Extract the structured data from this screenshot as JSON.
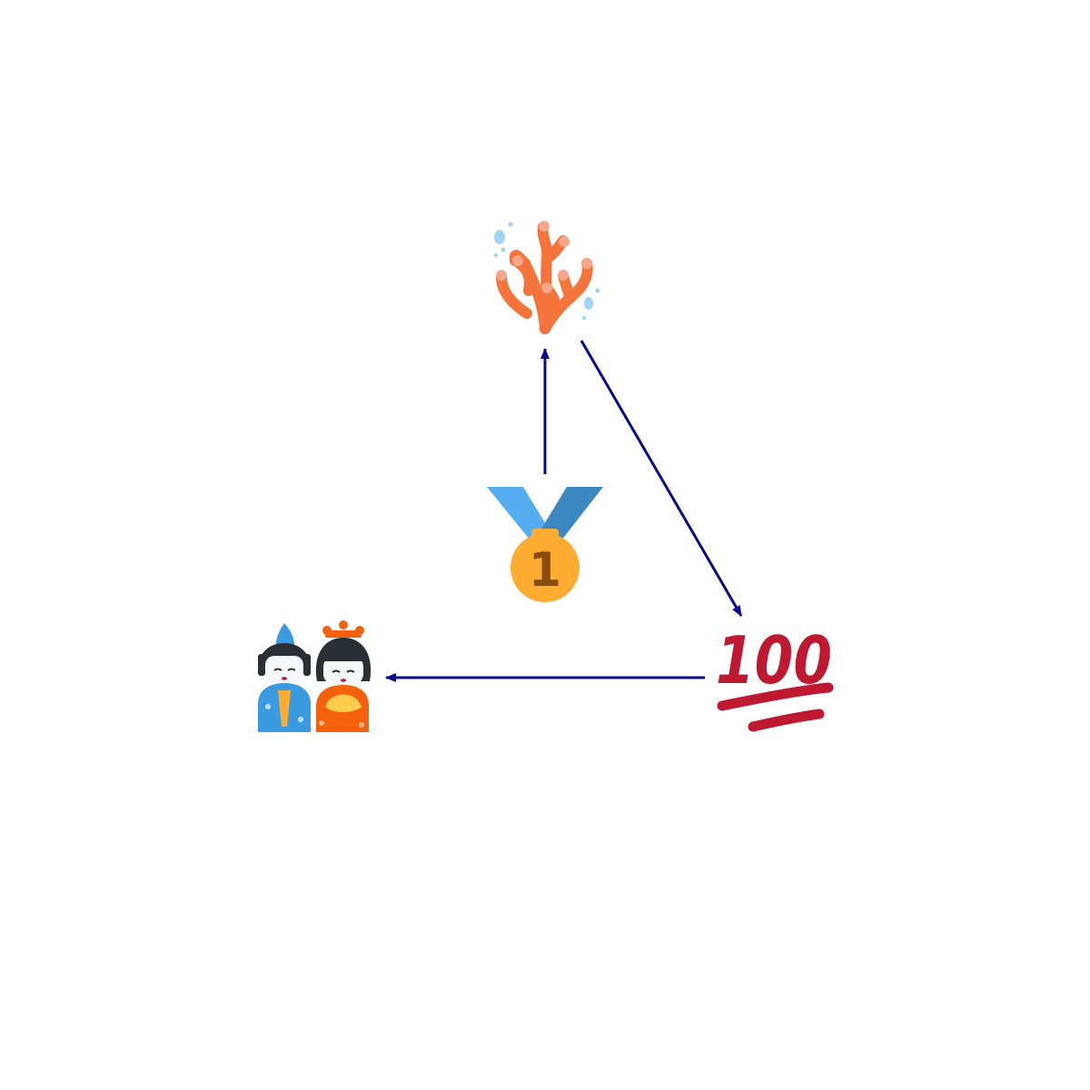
{
  "nodes": [
    {
      "id": "medal",
      "icon": "first-place-medal-icon",
      "label": "1"
    },
    {
      "id": "coral",
      "icon": "coral-icon"
    },
    {
      "id": "hundred",
      "icon": "hundred-points-icon",
      "label": "100"
    },
    {
      "id": "dolls",
      "icon": "japanese-dolls-icon"
    }
  ],
  "edges": [
    {
      "from": "medal",
      "to": "coral"
    },
    {
      "from": "coral",
      "to": "hundred"
    },
    {
      "from": "hundred",
      "to": "dolls"
    }
  ],
  "colors": {
    "arrow": "#0a0a8c",
    "coral": "#f4743b",
    "coral_tip": "#f9a58a",
    "bubble": "#9fd4f5",
    "ribbon_left": "#55acee",
    "ribbon_right": "#3b88c3",
    "medal_gold": "#ffac33",
    "medal_number": "#8a4b10",
    "hundred": "#be1931",
    "doll_blue": "#3b9be0",
    "doll_orange": "#f4600c",
    "hair": "#292f33",
    "face": "#f5f8fa"
  }
}
